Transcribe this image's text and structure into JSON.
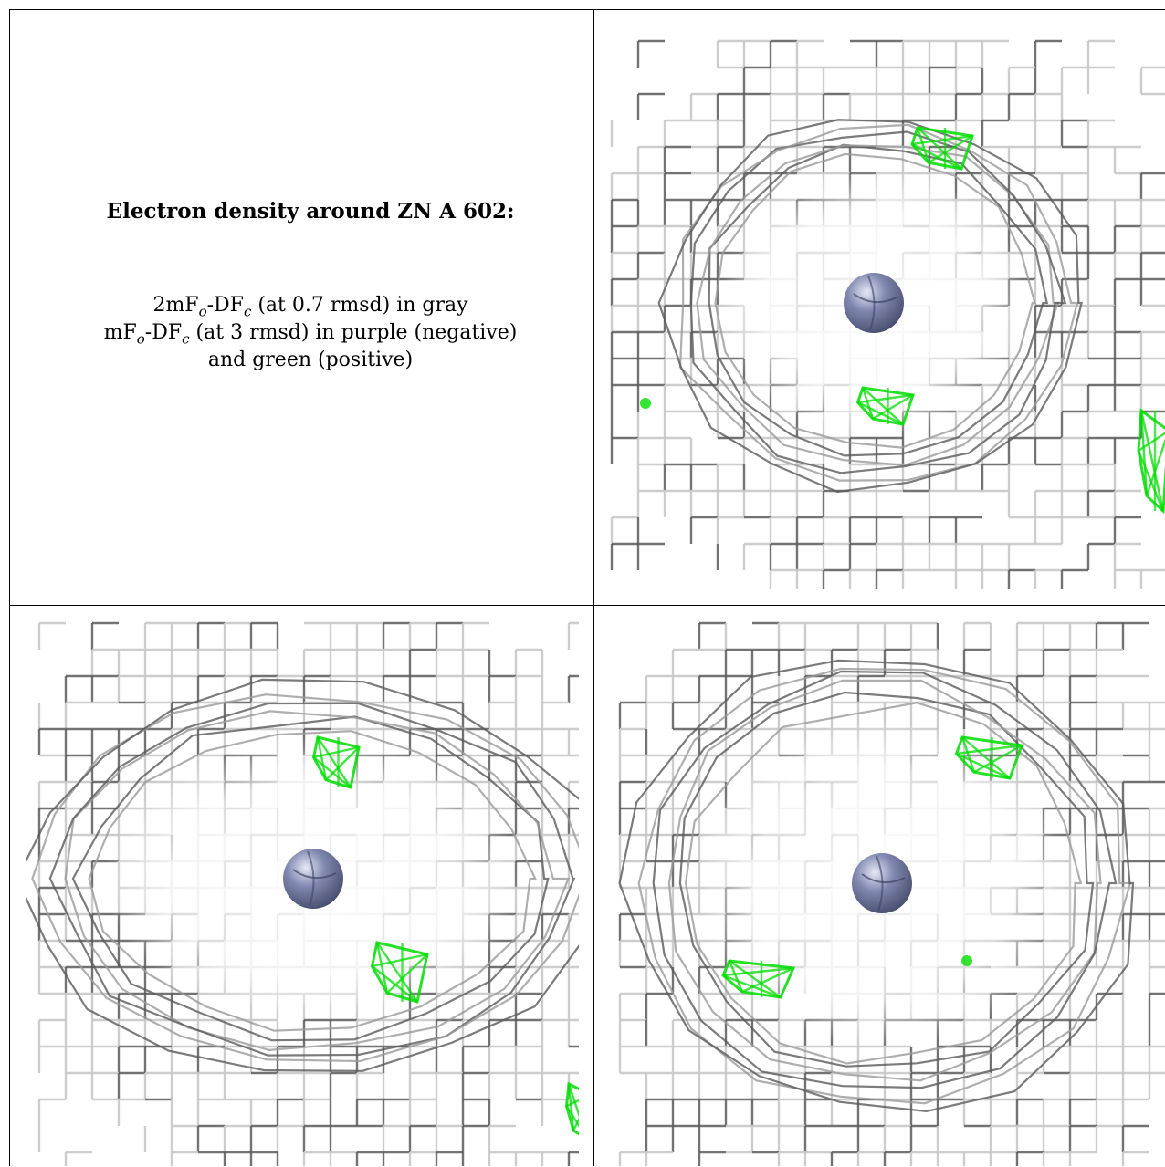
{
  "caption": {
    "title": "Electron density around ZN A 602:",
    "line1": {
      "a": "2mF",
      "a_sub": "o",
      "b": "-DF",
      "b_sub": "c",
      "c": " (at 0.7 rmsd) in gray"
    },
    "line2": {
      "a": "mF",
      "a_sub": "o",
      "b": "-DF",
      "b_sub": "c",
      "c": " (at 3 rmsd) in purple (negative)"
    },
    "line3": "and green (positive)"
  },
  "colors": {
    "mesh_dark": "#5a5a5a",
    "mesh_light": "#c8c8c8",
    "positive": "#00dd00",
    "atom": "#8088b0"
  },
  "panels": [
    {
      "name": "view-1",
      "atom": "zn-atom"
    },
    {
      "name": "view-2",
      "atom": "zn-atom"
    },
    {
      "name": "view-3",
      "atom": "zn-atom"
    }
  ]
}
